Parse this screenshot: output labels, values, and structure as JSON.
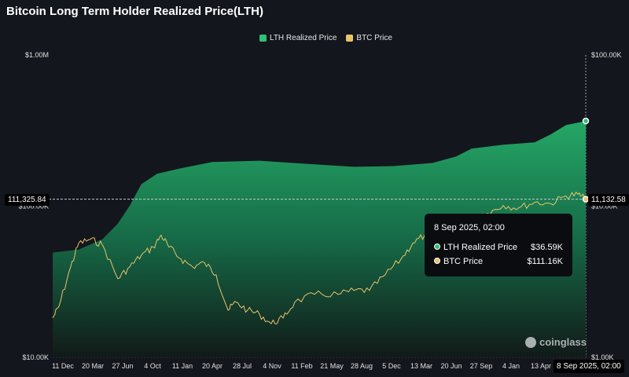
{
  "chart_data": {
    "type": "line",
    "title": "Bitcoin Long Term Holder Realized Price(LTH)",
    "legend": [
      "LTH Realized Price",
      "BTC Price"
    ],
    "legend_position": "top-center",
    "x_ticks": [
      "11 Dec",
      "20 Mar",
      "27 Jun",
      "4 Oct",
      "11 Jan",
      "20 Apr",
      "28 Jul",
      "4 Nov",
      "11 Feb",
      "21 May",
      "28 Aug",
      "5 Dec",
      "13 Mar",
      "20 Jun",
      "27 Sep",
      "4 Jan",
      "13 Apr"
    ],
    "x_unit": "tick index",
    "left_axis": {
      "scale": "log",
      "ylim": [
        10000,
        1000000
      ],
      "ticks": [
        "$10.00K",
        "$100.00K",
        "$1.00M"
      ]
    },
    "right_axis": {
      "scale": "log",
      "ylim": [
        1000,
        100000
      ],
      "ticks": [
        "$1.00K",
        "$10.00K",
        "$100.00K"
      ]
    },
    "series": [
      {
        "name": "LTH Realized Price",
        "axis": "right",
        "color": "#2fbf77",
        "points": [
          [
            -0.34,
            4930
          ],
          [
            0.53,
            5170
          ],
          [
            1.32,
            6040
          ],
          [
            1.84,
            7680
          ],
          [
            2.24,
            10100
          ],
          [
            2.63,
            14000
          ],
          [
            3.16,
            16400
          ],
          [
            3.95,
            17800
          ],
          [
            5.0,
            19600
          ],
          [
            6.58,
            20000
          ],
          [
            8.42,
            18900
          ],
          [
            9.74,
            18200
          ],
          [
            11.05,
            18400
          ],
          [
            12.37,
            19300
          ],
          [
            13.16,
            21300
          ],
          [
            13.68,
            24000
          ],
          [
            14.74,
            25500
          ],
          [
            15.79,
            26400
          ],
          [
            16.32,
            29800
          ],
          [
            16.84,
            34400
          ],
          [
            17.5,
            36590
          ]
        ]
      },
      {
        "name": "BTC Price",
        "axis": "left",
        "color": "#e9c46a",
        "points": [
          [
            -0.34,
            18200
          ],
          [
            -0.13,
            21800
          ],
          [
            0.26,
            39700
          ],
          [
            0.53,
            56900
          ],
          [
            0.92,
            60400
          ],
          [
            1.32,
            55600
          ],
          [
            1.84,
            33200
          ],
          [
            2.24,
            39700
          ],
          [
            2.63,
            47500
          ],
          [
            3.03,
            53600
          ],
          [
            3.29,
            64200
          ],
          [
            3.55,
            53600
          ],
          [
            3.95,
            44800
          ],
          [
            4.34,
            39700
          ],
          [
            4.74,
            42200
          ],
          [
            5.13,
            35200
          ],
          [
            5.53,
            20500
          ],
          [
            5.79,
            23200
          ],
          [
            6.18,
            20500
          ],
          [
            6.58,
            19300
          ],
          [
            6.97,
            16700
          ],
          [
            7.37,
            18200
          ],
          [
            7.76,
            23200
          ],
          [
            8.42,
            26100
          ],
          [
            9.21,
            26100
          ],
          [
            9.74,
            27700
          ],
          [
            10.26,
            27700
          ],
          [
            10.79,
            35200
          ],
          [
            11.32,
            44800
          ],
          [
            11.71,
            56900
          ],
          [
            12.11,
            64200
          ],
          [
            12.63,
            76800
          ],
          [
            13.16,
            81500
          ],
          [
            13.68,
            86600
          ],
          [
            14.21,
            89800
          ],
          [
            14.74,
            101000
          ],
          [
            15.26,
            97600
          ],
          [
            15.79,
            106000
          ],
          [
            16.32,
            104000
          ],
          [
            16.84,
            117000
          ],
          [
            17.24,
            120000
          ],
          [
            17.5,
            111160
          ]
        ]
      }
    ],
    "crosshair": {
      "left_value": "111,325.84",
      "right_value": "11,132.58",
      "date": "8 Sep 2025, 02:00"
    },
    "tooltip": {
      "date": "8 Sep 2025, 02:00",
      "rows": [
        {
          "label": "LTH Realized Price",
          "value": "$36.59K"
        },
        {
          "label": "BTC Price",
          "value": "$111.16K"
        }
      ]
    },
    "watermark": "coinglass"
  }
}
